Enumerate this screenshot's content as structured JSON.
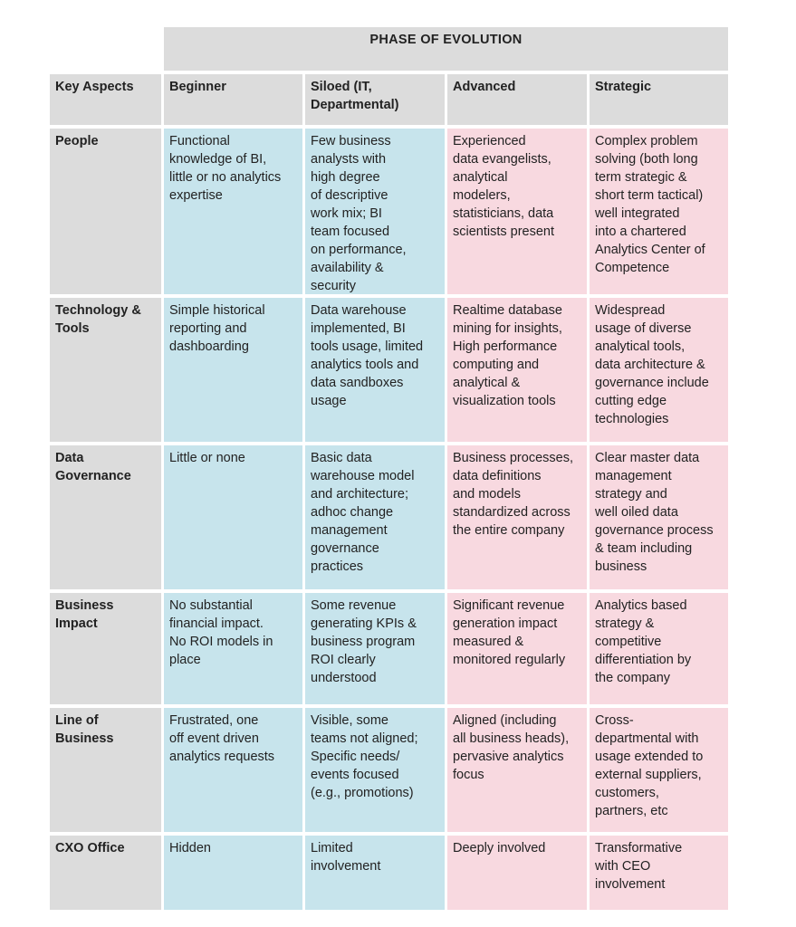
{
  "header": {
    "phase_title": "PHASE OF EVOLUTION"
  },
  "columns": [
    "Key Aspects",
    "Beginner",
    "Siloed (IT,\nDepartmental)",
    "Advanced",
    "Strategic"
  ],
  "colors": {
    "header": "#dcdcdc",
    "blue": "#c7e4ec",
    "pink": "#f8d9e0"
  },
  "rows": [
    {
      "aspect": "People",
      "cells": [
        "Functional\nknowledge of BI,\nlittle or no analytics\nexpertise",
        "Few business\nanalysts with\nhigh degree\nof descriptive\nwork mix; BI\nteam focused\non performance,\navailability &\nsecurity",
        "Experienced\ndata evangelists,\nanalytical\nmodelers,\nstatisticians, data\nscientists present",
        "Complex problem\nsolving (both long\nterm strategic &\nshort term tactical)\nwell integrated\ninto a chartered\nAnalytics Center of\nCompetence"
      ]
    },
    {
      "aspect": "Technology &\nTools",
      "cells": [
        "Simple historical\nreporting and\ndashboarding",
        "Data warehouse\nimplemented, BI\ntools usage, limited\nanalytics tools and\ndata sandboxes\nusage",
        "Realtime database\nmining for insights,\nHigh performance\ncomputing and\nanalytical &\nvisualization tools",
        "Widespread\nusage of diverse\nanalytical tools,\ndata architecture &\ngovernance include\ncutting edge\ntechnologies"
      ]
    },
    {
      "aspect": "Data\nGovernance",
      "cells": [
        "Little or none",
        "Basic data\nwarehouse model\nand architecture;\nadhoc change\nmanagement\ngovernance\npractices",
        "Business processes,\ndata definitions\nand models\nstandardized across\nthe entire company",
        "Clear master data\nmanagement\nstrategy and\nwell oiled data\ngovernance process\n& team including\nbusiness"
      ]
    },
    {
      "aspect": "Business\nImpact",
      "cells": [
        "No substantial\nfinancial impact.\nNo ROI models in\nplace",
        "Some revenue\ngenerating KPIs &\nbusiness program\nROI clearly\nunderstood",
        "Significant revenue\ngeneration impact\nmeasured &\nmonitored regularly",
        "Analytics based\nstrategy &\ncompetitive\ndifferentiation by\nthe company"
      ]
    },
    {
      "aspect": "Line of\nBusiness",
      "cells": [
        "Frustrated, one\noff event driven\nanalytics requests",
        "Visible, some\nteams not aligned;\nSpecific needs/\nevents focused\n(e.g., promotions)",
        "Aligned (including\nall business heads),\npervasive analytics\nfocus",
        "Cross-\ndepartmental with\nusage extended to\nexternal suppliers,\ncustomers,\npartners, etc"
      ]
    },
    {
      "aspect": "CXO Office",
      "cells": [
        "Hidden",
        "Limited\ninvolvement",
        "Deeply involved",
        "Transformative\nwith CEO\ninvolvement"
      ]
    }
  ]
}
